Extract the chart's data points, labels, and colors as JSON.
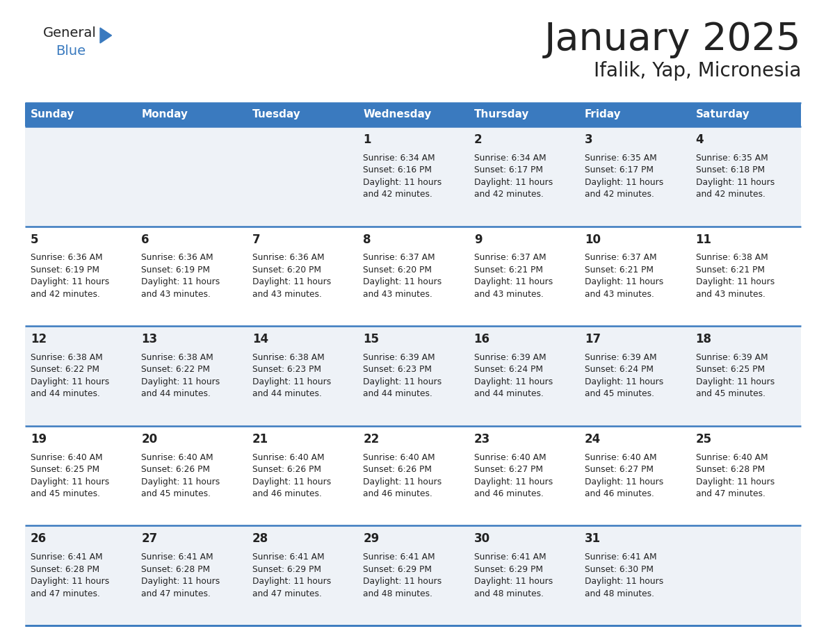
{
  "title": "January 2025",
  "subtitle": "Ifalik, Yap, Micronesia",
  "days_of_week": [
    "Sunday",
    "Monday",
    "Tuesday",
    "Wednesday",
    "Thursday",
    "Friday",
    "Saturday"
  ],
  "header_bg": "#3a7abf",
  "header_text_color": "#ffffff",
  "row_bg_light": "#eef2f7",
  "row_bg_white": "#ffffff",
  "border_color": "#3a7abf",
  "text_color": "#222222",
  "title_color": "#222222",
  "logo_general_color": "#222222",
  "logo_blue_color": "#3a7abf",
  "logo_triangle_color": "#3a7abf",
  "calendar_data": [
    [
      null,
      null,
      null,
      {
        "day": 1,
        "sunrise": "6:34 AM",
        "sunset": "6:16 PM",
        "daylight": "11 hours and 42 minutes."
      },
      {
        "day": 2,
        "sunrise": "6:34 AM",
        "sunset": "6:17 PM",
        "daylight": "11 hours and 42 minutes."
      },
      {
        "day": 3,
        "sunrise": "6:35 AM",
        "sunset": "6:17 PM",
        "daylight": "11 hours and 42 minutes."
      },
      {
        "day": 4,
        "sunrise": "6:35 AM",
        "sunset": "6:18 PM",
        "daylight": "11 hours and 42 minutes."
      }
    ],
    [
      {
        "day": 5,
        "sunrise": "6:36 AM",
        "sunset": "6:19 PM",
        "daylight": "11 hours and 42 minutes."
      },
      {
        "day": 6,
        "sunrise": "6:36 AM",
        "sunset": "6:19 PM",
        "daylight": "11 hours and 43 minutes."
      },
      {
        "day": 7,
        "sunrise": "6:36 AM",
        "sunset": "6:20 PM",
        "daylight": "11 hours and 43 minutes."
      },
      {
        "day": 8,
        "sunrise": "6:37 AM",
        "sunset": "6:20 PM",
        "daylight": "11 hours and 43 minutes."
      },
      {
        "day": 9,
        "sunrise": "6:37 AM",
        "sunset": "6:21 PM",
        "daylight": "11 hours and 43 minutes."
      },
      {
        "day": 10,
        "sunrise": "6:37 AM",
        "sunset": "6:21 PM",
        "daylight": "11 hours and 43 minutes."
      },
      {
        "day": 11,
        "sunrise": "6:38 AM",
        "sunset": "6:21 PM",
        "daylight": "11 hours and 43 minutes."
      }
    ],
    [
      {
        "day": 12,
        "sunrise": "6:38 AM",
        "sunset": "6:22 PM",
        "daylight": "11 hours and 44 minutes."
      },
      {
        "day": 13,
        "sunrise": "6:38 AM",
        "sunset": "6:22 PM",
        "daylight": "11 hours and 44 minutes."
      },
      {
        "day": 14,
        "sunrise": "6:38 AM",
        "sunset": "6:23 PM",
        "daylight": "11 hours and 44 minutes."
      },
      {
        "day": 15,
        "sunrise": "6:39 AM",
        "sunset": "6:23 PM",
        "daylight": "11 hours and 44 minutes."
      },
      {
        "day": 16,
        "sunrise": "6:39 AM",
        "sunset": "6:24 PM",
        "daylight": "11 hours and 44 minutes."
      },
      {
        "day": 17,
        "sunrise": "6:39 AM",
        "sunset": "6:24 PM",
        "daylight": "11 hours and 45 minutes."
      },
      {
        "day": 18,
        "sunrise": "6:39 AM",
        "sunset": "6:25 PM",
        "daylight": "11 hours and 45 minutes."
      }
    ],
    [
      {
        "day": 19,
        "sunrise": "6:40 AM",
        "sunset": "6:25 PM",
        "daylight": "11 hours and 45 minutes."
      },
      {
        "day": 20,
        "sunrise": "6:40 AM",
        "sunset": "6:26 PM",
        "daylight": "11 hours and 45 minutes."
      },
      {
        "day": 21,
        "sunrise": "6:40 AM",
        "sunset": "6:26 PM",
        "daylight": "11 hours and 46 minutes."
      },
      {
        "day": 22,
        "sunrise": "6:40 AM",
        "sunset": "6:26 PM",
        "daylight": "11 hours and 46 minutes."
      },
      {
        "day": 23,
        "sunrise": "6:40 AM",
        "sunset": "6:27 PM",
        "daylight": "11 hours and 46 minutes."
      },
      {
        "day": 24,
        "sunrise": "6:40 AM",
        "sunset": "6:27 PM",
        "daylight": "11 hours and 46 minutes."
      },
      {
        "day": 25,
        "sunrise": "6:40 AM",
        "sunset": "6:28 PM",
        "daylight": "11 hours and 47 minutes."
      }
    ],
    [
      {
        "day": 26,
        "sunrise": "6:41 AM",
        "sunset": "6:28 PM",
        "daylight": "11 hours and 47 minutes."
      },
      {
        "day": 27,
        "sunrise": "6:41 AM",
        "sunset": "6:28 PM",
        "daylight": "11 hours and 47 minutes."
      },
      {
        "day": 28,
        "sunrise": "6:41 AM",
        "sunset": "6:29 PM",
        "daylight": "11 hours and 47 minutes."
      },
      {
        "day": 29,
        "sunrise": "6:41 AM",
        "sunset": "6:29 PM",
        "daylight": "11 hours and 48 minutes."
      },
      {
        "day": 30,
        "sunrise": "6:41 AM",
        "sunset": "6:29 PM",
        "daylight": "11 hours and 48 minutes."
      },
      {
        "day": 31,
        "sunrise": "6:41 AM",
        "sunset": "6:30 PM",
        "daylight": "11 hours and 48 minutes."
      },
      null
    ]
  ]
}
